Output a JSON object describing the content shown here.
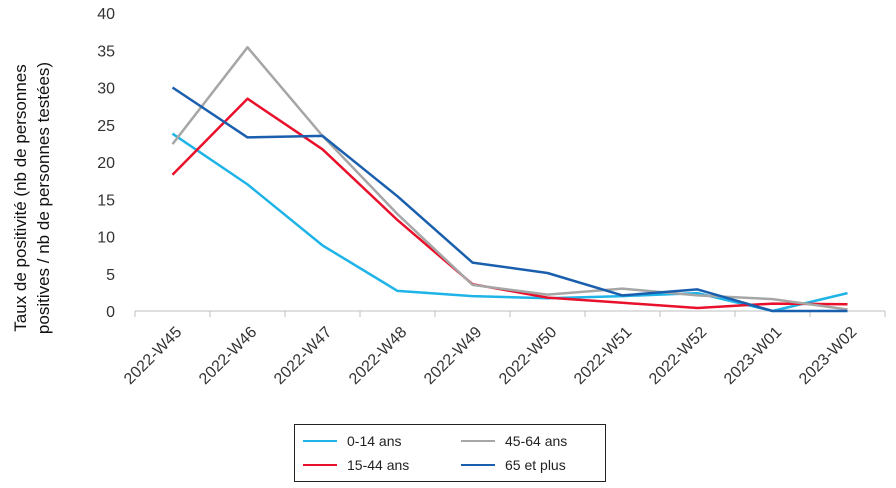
{
  "chart_data": {
    "type": "line",
    "title": "",
    "xlabel": "",
    "ylabel_line1": "Taux de positivité (nb de personnes",
    "ylabel_line2": "positives / nb de personnes testées)",
    "ylim": [
      0,
      40
    ],
    "yticks": [
      0,
      5,
      10,
      15,
      20,
      25,
      30,
      35,
      40
    ],
    "grid": false,
    "legend_position": "bottom",
    "categories": [
      "2022-W45",
      "2022-W46",
      "2022-W47",
      "2022-W48",
      "2022-W49",
      "2022-W50",
      "2022-W51",
      "2022-W52",
      "2023-W01",
      "2023-W02"
    ],
    "series": [
      {
        "name": "0-14 ans",
        "color": "#1FB4E8",
        "values": [
          23.8,
          17.0,
          8.8,
          2.7,
          2.0,
          1.7,
          2.0,
          2.4,
          0.0,
          2.4
        ]
      },
      {
        "name": "15-44 ans",
        "color": "#E8102A",
        "values": [
          18.3,
          28.5,
          21.7,
          12.2,
          3.6,
          1.8,
          1.1,
          0.4,
          1.0,
          0.9
        ]
      },
      {
        "name": "45-64 ans",
        "color": "#A6A6A6",
        "values": [
          22.4,
          35.4,
          23.5,
          13.0,
          3.5,
          2.2,
          3.0,
          2.1,
          1.6,
          0.2
        ]
      },
      {
        "name": "65 et plus",
        "color": "#1A5FAE",
        "values": [
          30.0,
          23.3,
          23.5,
          15.4,
          6.5,
          5.1,
          2.1,
          2.9,
          0.0,
          0.0
        ]
      }
    ]
  }
}
